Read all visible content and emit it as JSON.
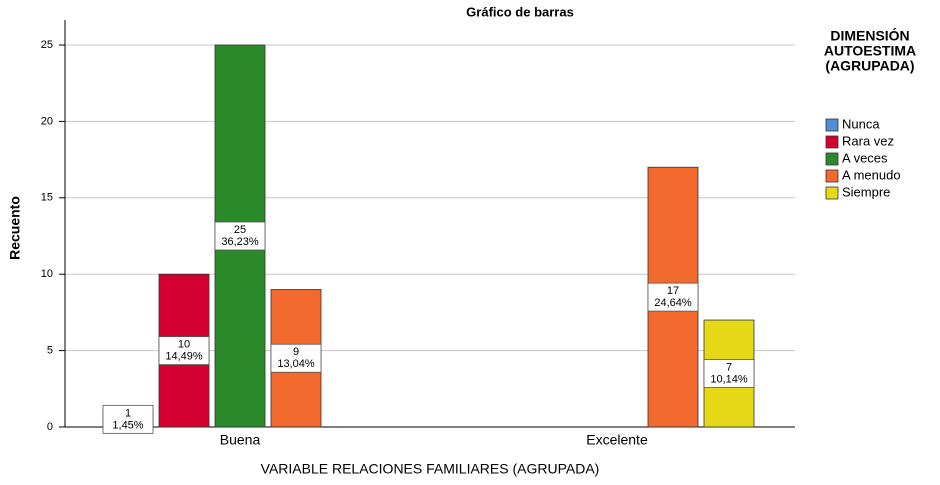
{
  "chart_data": {
    "type": "bar",
    "title": "Gráfico de barras",
    "x_label": "VARIABLE RELACIONES FAMILIARES (AGRUPADA)",
    "y_label": "Recuento",
    "legend_title": [
      "DIMENSIÓN",
      "AUTOESTIMA",
      "(AGRUPADA)"
    ],
    "categories": [
      "Buena",
      "Excelente"
    ],
    "series": [
      {
        "name": "Nunca",
        "color": "#4f8fd6",
        "values": [
          1,
          null
        ],
        "percent_labels": [
          "1,45%",
          null
        ]
      },
      {
        "name": "Rara vez",
        "color": "#d4002f",
        "values": [
          10,
          null
        ],
        "percent_labels": [
          "14,49%",
          null
        ]
      },
      {
        "name": "A veces",
        "color": "#2a8a2a",
        "values": [
          25,
          null
        ],
        "percent_labels": [
          "36,23%",
          null
        ]
      },
      {
        "name": "A menudo",
        "color": "#f26a2e",
        "values": [
          9,
          17
        ],
        "percent_labels": [
          "13,04%",
          "24,64%"
        ]
      },
      {
        "name": "Siempre",
        "color": "#e5d816",
        "values": [
          null,
          7
        ],
        "percent_labels": [
          null,
          "10,14%"
        ]
      }
    ],
    "ylim": [
      0,
      25
    ],
    "yticks": [
      0,
      5,
      10,
      15,
      20,
      25
    ],
    "grid": true,
    "legend": "right"
  }
}
